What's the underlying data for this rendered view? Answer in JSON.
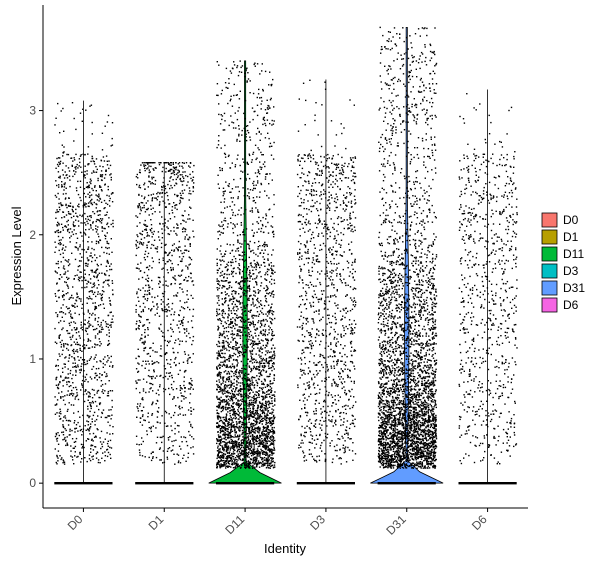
{
  "chart_data": {
    "type": "violin",
    "xlabel": "Identity",
    "ylabel": "Expression Level",
    "ylim": [
      -0.2,
      3.85
    ],
    "yticks": [
      0,
      1,
      2,
      3
    ],
    "categories": [
      "D0",
      "D1",
      "D11",
      "D3",
      "D31",
      "D6"
    ],
    "colors": {
      "D0": "#F8766D",
      "D1": "#B79F00",
      "D11": "#00BA38",
      "D3": "#00BFC4",
      "D31": "#619CFF",
      "D6": "#F564E3"
    },
    "series": [
      {
        "name": "D0",
        "max": 3.08,
        "violin_half_width": 0.01,
        "point_density": "medium",
        "points_above_zero": 1350
      },
      {
        "name": "D1",
        "max": 2.58,
        "violin_half_width": 0.01,
        "point_density": "low",
        "points_above_zero": 1050
      },
      {
        "name": "D11",
        "max": 3.4,
        "violin_half_width": 0.45,
        "point_density": "high",
        "points_above_zero": 3300
      },
      {
        "name": "D3",
        "max": 3.25,
        "violin_half_width": 0.01,
        "point_density": "low",
        "points_above_zero": 1150
      },
      {
        "name": "D31",
        "max": 3.67,
        "violin_half_width": 0.45,
        "point_density": "high",
        "points_above_zero": 3900
      },
      {
        "name": "D6",
        "max": 3.17,
        "violin_half_width": 0.01,
        "point_density": "low",
        "points_above_zero": 800
      }
    ],
    "legend": {
      "position": "right",
      "entries": [
        "D0",
        "D1",
        "D11",
        "D3",
        "D31",
        "D6"
      ]
    },
    "grid": false
  }
}
